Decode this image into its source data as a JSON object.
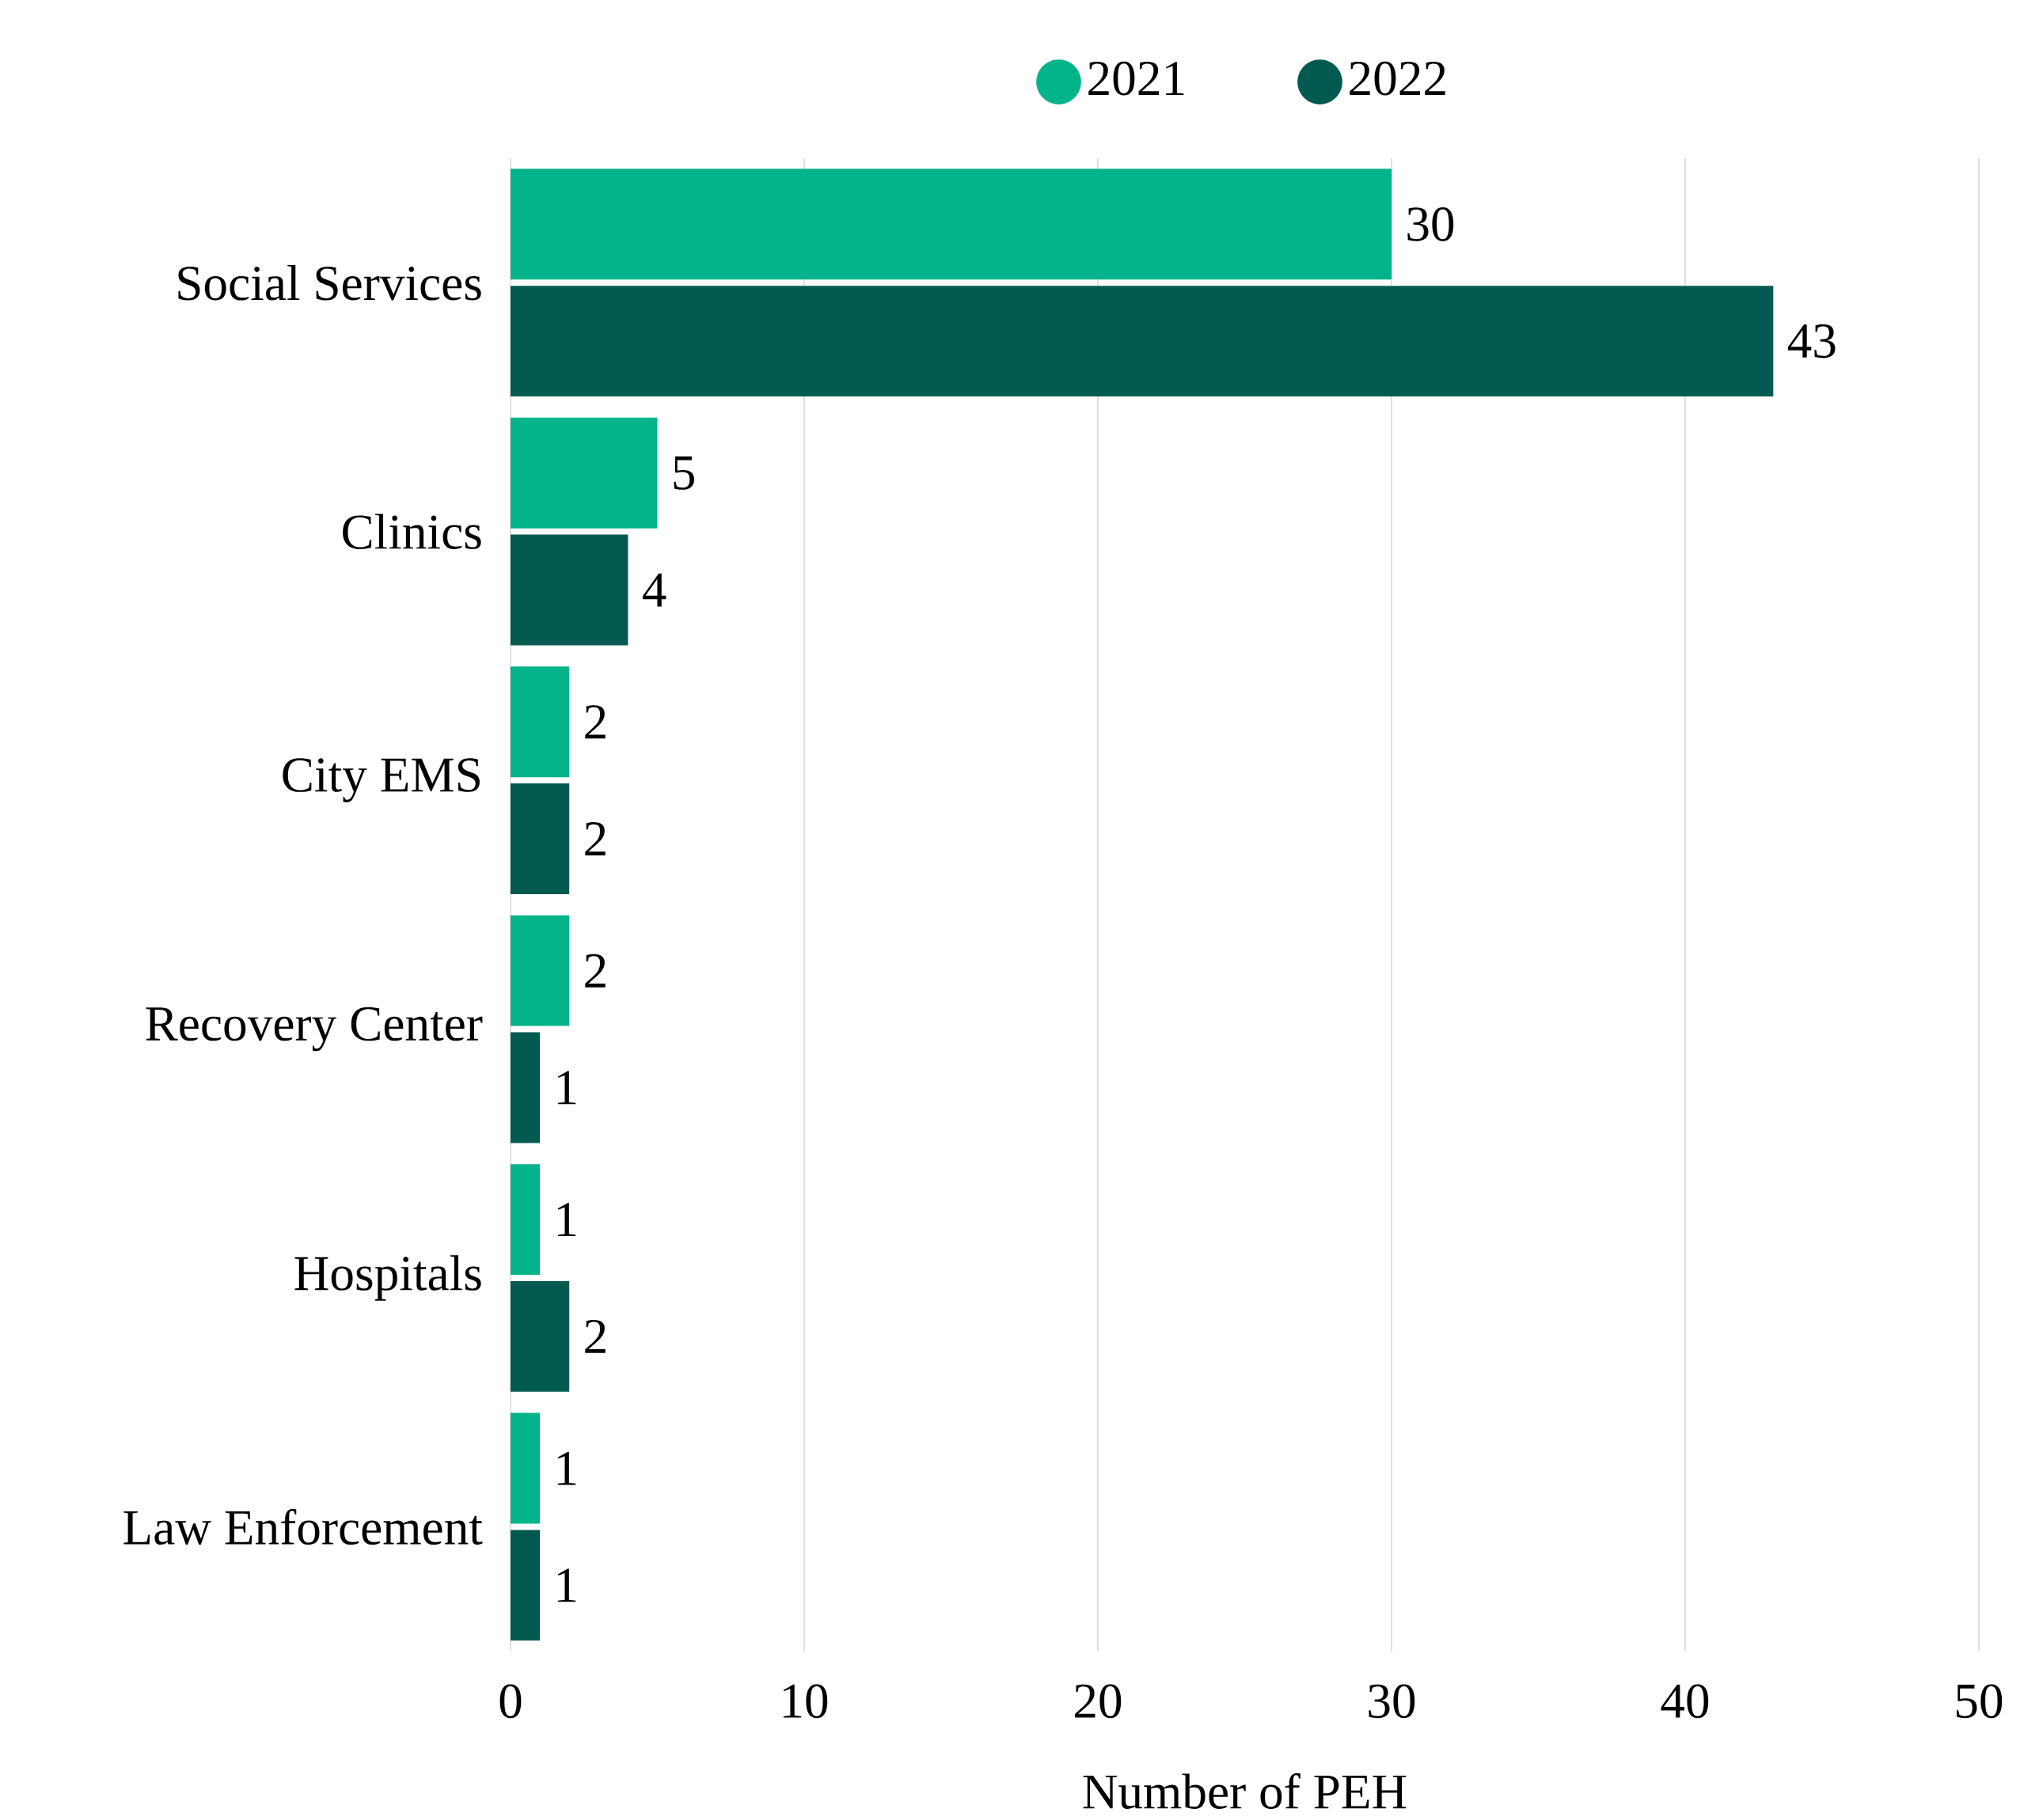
{
  "chart_data": {
    "type": "bar",
    "orientation": "horizontal",
    "xlabel": "Number of PEH",
    "categories": [
      "Social Services",
      "Clinics",
      "City EMS",
      "Recovery Center",
      "Hospitals",
      "Law Enforcement"
    ],
    "series": [
      {
        "name": "2021",
        "color": "#03b389",
        "values": [
          30,
          5,
          2,
          2,
          1,
          1
        ]
      },
      {
        "name": "2022",
        "color": "#025a50",
        "values": [
          43,
          4,
          2,
          1,
          2,
          1
        ]
      }
    ],
    "xlim": [
      0,
      50
    ],
    "xticks": [
      0,
      10,
      20,
      30,
      40,
      50
    ],
    "grid": "x",
    "legend": "top",
    "data_labels": true
  }
}
